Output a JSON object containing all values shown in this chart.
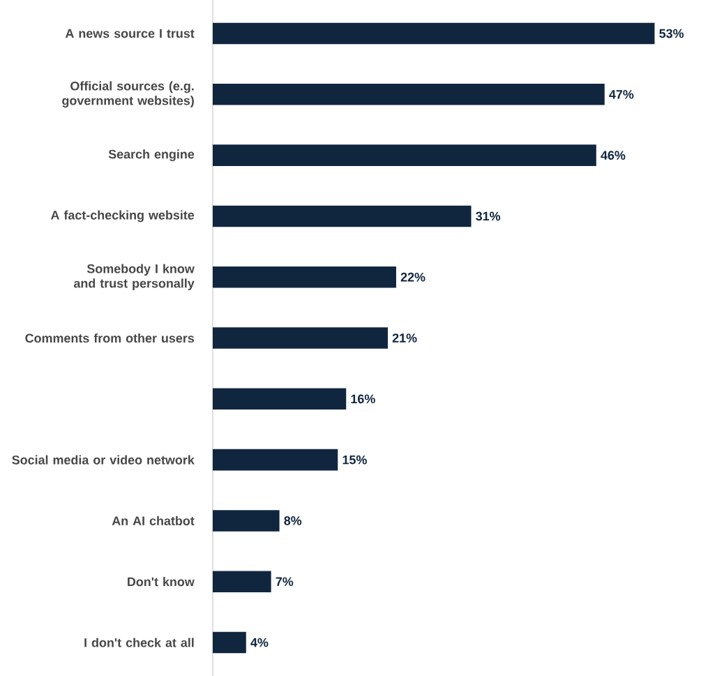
{
  "chart_data": {
    "type": "bar",
    "orientation": "horizontal",
    "color": "#10263f",
    "categories": [
      "A news source I trust",
      "Official sources (e.g. government websites)",
      "Search engine",
      "A fact-checking website",
      "Somebody I know and trust personally",
      "Comments from other users",
      null,
      "Social media or video network",
      "An AI chatbot",
      "Don't know",
      "I don't check at all"
    ],
    "values": [
      53,
      47,
      46,
      31,
      22,
      21,
      16,
      15,
      8,
      7,
      4
    ],
    "value_labels": [
      "53%",
      "47%",
      "46%",
      "31%",
      "22%",
      "21%",
      "16%",
      "15%",
      "8%",
      "7%",
      "4%"
    ]
  }
}
